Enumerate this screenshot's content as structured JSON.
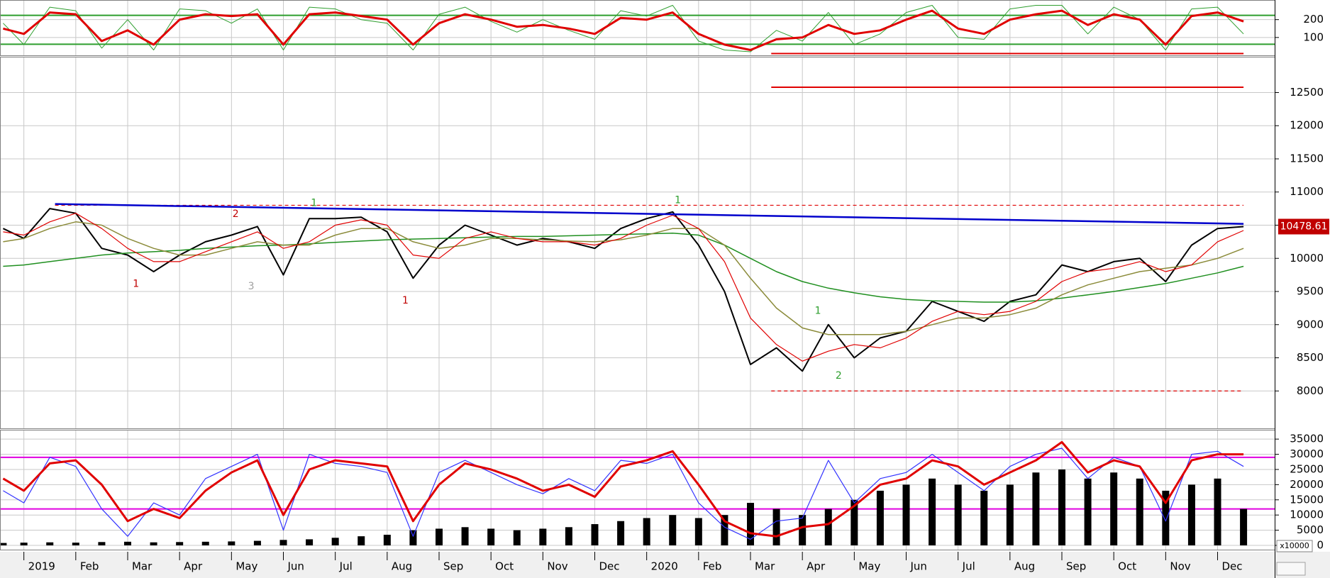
{
  "chart_data": [
    {
      "type": "line",
      "x": [
        -0.4,
        0,
        0.5,
        1,
        1.5,
        2,
        2.5,
        3,
        3.5,
        4,
        4.5,
        5,
        5.5,
        6,
        6.5,
        7,
        7.5,
        8,
        8.5,
        9,
        9.5,
        10,
        10.5,
        11,
        11.5,
        12,
        12.5,
        13,
        13.5,
        14,
        14.5,
        15,
        15.5,
        16,
        16.5,
        17,
        17.5,
        18,
        18.5,
        19,
        19.5,
        20,
        20.5,
        21,
        21.5,
        22,
        22.5,
        23,
        23.5
      ],
      "ylim": [
        0,
        310
      ],
      "yticks": [
        100,
        200
      ],
      "grid": true,
      "series": [
        {
          "color": "#2e9e2e",
          "width": 1,
          "values": [
            180,
            60,
            270,
            250,
            40,
            200,
            30,
            260,
            250,
            180,
            260,
            30,
            270,
            260,
            200,
            180,
            30,
            230,
            270,
            190,
            130,
            200,
            140,
            90,
            250,
            220,
            280,
            80,
            30,
            20,
            140,
            80,
            240,
            60,
            120,
            240,
            280,
            100,
            90,
            260,
            280,
            280,
            120,
            270,
            200,
            30,
            260,
            270,
            120
          ]
        },
        {
          "color": "#e00000",
          "width": 3,
          "values": [
            150,
            120,
            240,
            230,
            80,
            140,
            60,
            200,
            230,
            220,
            230,
            60,
            230,
            240,
            220,
            200,
            60,
            180,
            230,
            200,
            160,
            170,
            150,
            120,
            210,
            200,
            240,
            120,
            60,
            30,
            90,
            100,
            170,
            120,
            140,
            200,
            250,
            150,
            120,
            200,
            230,
            250,
            170,
            230,
            200,
            60,
            220,
            240,
            190
          ]
        }
      ],
      "hlines": [
        {
          "value": 224,
          "color": "#2e9e2e"
        },
        {
          "value": 62,
          "color": "#2e9e2e"
        },
        {
          "value": 10,
          "from": 14.4,
          "to": 23.5,
          "color": "#e00000"
        }
      ]
    },
    {
      "type": "line",
      "x": [
        -0.4,
        0,
        0.5,
        1,
        1.5,
        2,
        2.5,
        3,
        3.5,
        4,
        4.5,
        5,
        5.5,
        6,
        6.5,
        7,
        7.5,
        8,
        8.5,
        9,
        9.5,
        10,
        10.5,
        11,
        11.5,
        12,
        12.5,
        13,
        13.5,
        14,
        14.5,
        15,
        15.5,
        16,
        16.5,
        17,
        17.5,
        18,
        18.5,
        19,
        19.5,
        20,
        20.5,
        21,
        21.5,
        22,
        22.5,
        23,
        23.5
      ],
      "ylim": [
        7436,
        13040
      ],
      "yticks": [
        8000,
        8500,
        9000,
        9500,
        10000,
        10500,
        11000,
        11500,
        12000,
        12500
      ],
      "grid": true,
      "series": [
        {
          "color": "#000000",
          "width": 2,
          "values": [
            10450,
            10300,
            10750,
            10680,
            10150,
            10050,
            9800,
            10050,
            10250,
            10350,
            10480,
            9750,
            10600,
            10600,
            10620,
            10400,
            9700,
            10200,
            10500,
            10350,
            10200,
            10300,
            10250,
            10150,
            10450,
            10600,
            10700,
            10200,
            9500,
            8400,
            8650,
            8300,
            9000,
            8500,
            8800,
            8900,
            9350,
            9200,
            9050,
            9350,
            9450,
            9900,
            9800,
            9950,
            10000,
            9650,
            10200,
            10450,
            10478.61
          ]
        },
        {
          "color": "#1f8f1f",
          "width": 1.5,
          "values": [
            9880,
            9900,
            9950,
            10000,
            10050,
            10080,
            10100,
            10120,
            10150,
            10170,
            10190,
            10200,
            10220,
            10240,
            10260,
            10280,
            10290,
            10300,
            10310,
            10320,
            10330,
            10330,
            10340,
            10350,
            10360,
            10370,
            10380,
            10350,
            10200,
            10000,
            9800,
            9650,
            9550,
            9480,
            9420,
            9380,
            9360,
            9350,
            9340,
            9340,
            9360,
            9400,
            9450,
            9500,
            9560,
            9620,
            9700,
            9780,
            9880
          ]
        },
        {
          "color": "#8b8b3a",
          "width": 1.5,
          "values": [
            10250,
            10300,
            10450,
            10550,
            10500,
            10300,
            10150,
            10050,
            10050,
            10150,
            10250,
            10200,
            10200,
            10350,
            10450,
            10450,
            10250,
            10150,
            10200,
            10300,
            10300,
            10280,
            10260,
            10250,
            10280,
            10350,
            10450,
            10450,
            10200,
            9700,
            9250,
            8950,
            8850,
            8850,
            8850,
            8900,
            9000,
            9100,
            9100,
            9150,
            9250,
            9450,
            9600,
            9700,
            9800,
            9850,
            9900,
            10000,
            10150
          ]
        },
        {
          "color": "#e00000",
          "width": 1.2,
          "values": [
            10400,
            10350,
            10550,
            10680,
            10450,
            10150,
            9950,
            9950,
            10100,
            10250,
            10400,
            10150,
            10250,
            10500,
            10580,
            10500,
            10050,
            10000,
            10300,
            10400,
            10300,
            10250,
            10250,
            10200,
            10300,
            10500,
            10650,
            10450,
            9950,
            9100,
            8700,
            8450,
            8600,
            8700,
            8650,
            8800,
            9050,
            9200,
            9150,
            9200,
            9350,
            9650,
            9800,
            9850,
            9950,
            9800,
            9900,
            10250,
            10420
          ]
        }
      ],
      "hlines": [
        {
          "value": 10800,
          "from": 0.6,
          "to": 23.5,
          "color": "#e00000",
          "style": "dashed"
        },
        {
          "value": 8000,
          "from": 14.4,
          "to": 23.5,
          "color": "#e00000",
          "style": "dashed"
        },
        {
          "value": 12580,
          "from": 14.4,
          "to": 23.5,
          "color": "#e00000"
        }
      ],
      "trendlines": [
        {
          "x": [
            0.6,
            23.5
          ],
          "y": [
            10820,
            10520
          ],
          "color": "#0000cc"
        }
      ],
      "annotations": [
        {
          "text": "1",
          "x": 2.16,
          "y": 9615,
          "color": "#c00000"
        },
        {
          "text": "2",
          "x": 4.08,
          "y": 10667,
          "color": "#c00000"
        },
        {
          "text": "3",
          "x": 4.38,
          "y": 9577,
          "color": "#a0a0a0"
        },
        {
          "text": "1",
          "x": 7.35,
          "y": 9359,
          "color": "#c00000"
        },
        {
          "text": "1",
          "x": 5.59,
          "y": 10833,
          "color": "#2e9e2e"
        },
        {
          "text": "1",
          "x": 12.6,
          "y": 10872,
          "color": "#2e9e2e"
        },
        {
          "text": "1",
          "x": 15.3,
          "y": 9205,
          "color": "#2e9e2e"
        },
        {
          "text": "2",
          "x": 15.7,
          "y": 8230,
          "color": "#2e9e2e"
        }
      ]
    },
    {
      "type": "bar",
      "x": [
        -0.4,
        0,
        0.5,
        1,
        1.5,
        2,
        2.5,
        3,
        3.5,
        4,
        4.5,
        5,
        5.5,
        6,
        6.5,
        7,
        7.5,
        8,
        8.5,
        9,
        9.5,
        10,
        10.5,
        11,
        11.5,
        12,
        12.5,
        13,
        13.5,
        14,
        14.5,
        15,
        15.5,
        16,
        16.5,
        17,
        17.5,
        18,
        18.5,
        19,
        19.5,
        20,
        20.5,
        21,
        21.5,
        22,
        22.5,
        23,
        23.5
      ],
      "ylim": [
        -1400,
        38070
      ],
      "yticks": [
        0,
        5000,
        10000,
        15000,
        20000,
        25000,
        30000,
        35000
      ],
      "grid": true,
      "unit_label": "x10000",
      "xlim": [
        -0.46,
        24.1
      ],
      "xticks": [
        {
          "value": 0,
          "label": "2019"
        },
        {
          "value": 1,
          "label": "Feb"
        },
        {
          "value": 2,
          "label": "Mar"
        },
        {
          "value": 3,
          "label": "Apr"
        },
        {
          "value": 4,
          "label": "May"
        },
        {
          "value": 5,
          "label": "Jun"
        },
        {
          "value": 6,
          "label": "Jul"
        },
        {
          "value": 7,
          "label": "Aug"
        },
        {
          "value": 8,
          "label": "Sep"
        },
        {
          "value": 9,
          "label": "Oct"
        },
        {
          "value": 10,
          "label": "Nov"
        },
        {
          "value": 11,
          "label": "Dec"
        },
        {
          "value": 12,
          "label": "2020"
        },
        {
          "value": 13,
          "label": "Feb"
        },
        {
          "value": 14,
          "label": "Mar"
        },
        {
          "value": 15,
          "label": "Apr"
        },
        {
          "value": 16,
          "label": "May"
        },
        {
          "value": 17,
          "label": "Jun"
        },
        {
          "value": 18,
          "label": "Jul"
        },
        {
          "value": 19,
          "label": "Aug"
        },
        {
          "value": 20,
          "label": "Sep"
        },
        {
          "value": 21,
          "label": "Oct"
        },
        {
          "value": 22,
          "label": "Nov"
        },
        {
          "value": 23,
          "label": "Dec"
        }
      ],
      "series": [
        {
          "type": "bar",
          "color": "#000000",
          "values": [
            800,
            900,
            1000,
            900,
            1100,
            1200,
            1000,
            1100,
            1200,
            1300,
            1500,
            1800,
            2000,
            2500,
            3000,
            3500,
            5000,
            5500,
            6000,
            5500,
            5000,
            5500,
            6000,
            7000,
            8000,
            9000,
            10000,
            9000,
            10000,
            14000,
            12000,
            10000,
            12000,
            15000,
            18000,
            20000,
            22000,
            20000,
            18000,
            20000,
            24000,
            25000,
            22000,
            24000,
            22000,
            18000,
            20000,
            22000,
            12000
          ]
        },
        {
          "type": "line",
          "color": "#3333ff",
          "width": 1.2,
          "values": [
            18000,
            14000,
            29000,
            26000,
            12000,
            3000,
            14000,
            10000,
            22000,
            26000,
            30000,
            5000,
            30000,
            27000,
            26000,
            24000,
            3000,
            24000,
            28000,
            24000,
            20000,
            17000,
            22000,
            18000,
            28000,
            27000,
            30000,
            14000,
            6000,
            2000,
            8000,
            9000,
            28000,
            14000,
            22000,
            24000,
            30000,
            24000,
            18000,
            26000,
            30000,
            32000,
            22000,
            29000,
            26000,
            8000,
            30000,
            31000,
            26000
          ]
        },
        {
          "type": "line",
          "color": "#e00000",
          "width": 3,
          "values": [
            22000,
            18000,
            27000,
            28000,
            20000,
            8000,
            12000,
            9000,
            18000,
            24000,
            28000,
            10000,
            25000,
            28000,
            27000,
            26000,
            8000,
            20000,
            27000,
            25000,
            22000,
            18000,
            20000,
            16000,
            26000,
            28000,
            31000,
            20000,
            8000,
            4000,
            3000,
            6000,
            7000,
            13000,
            20000,
            22000,
            28000,
            26000,
            20000,
            24000,
            28000,
            34000,
            24000,
            28000,
            26000,
            14000,
            28000,
            30000,
            30000
          ]
        }
      ],
      "hlines": [
        {
          "value": 29000,
          "color": "#e000e0"
        },
        {
          "value": 12000,
          "color": "#e000e0"
        }
      ]
    }
  ]
}
